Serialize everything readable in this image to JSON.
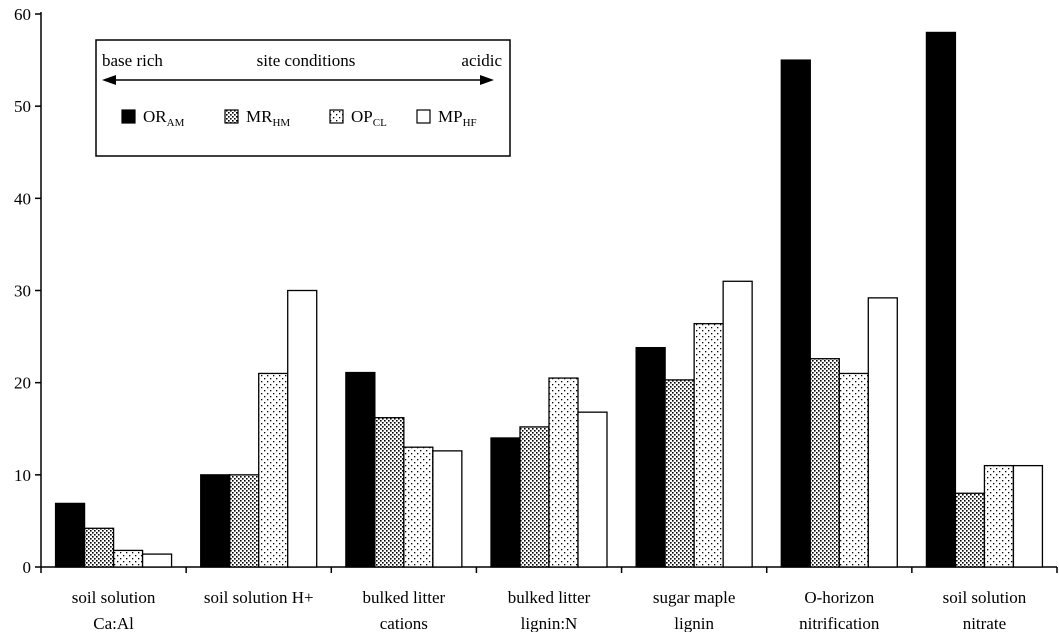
{
  "chart_data": {
    "type": "bar",
    "title": "",
    "xlabel": "",
    "ylabel": "",
    "ylim": [
      0,
      60
    ],
    "yticks": [
      "0",
      "10",
      "20",
      "30",
      "40",
      "50",
      "60"
    ],
    "categories": [
      [
        "soil solution",
        "Ca:Al"
      ],
      [
        "soil solution H+"
      ],
      [
        "bulked litter",
        "cations"
      ],
      [
        "bulked litter",
        "lignin:N"
      ],
      [
        "sugar maple",
        "lignin"
      ],
      [
        "O-horizon",
        "nitrification"
      ],
      [
        "soil solution",
        "nitrate"
      ]
    ],
    "series": [
      {
        "name": "OR",
        "sub": "AM",
        "fill": "solid",
        "color": "#000000",
        "values": [
          6.9,
          10.0,
          21.1,
          14.0,
          23.8,
          55.0,
          58.0
        ]
      },
      {
        "name": "MR",
        "sub": "HM",
        "fill": "dense-dots",
        "color": "#000000",
        "values": [
          4.2,
          10.0,
          16.2,
          15.2,
          20.3,
          22.6,
          8.0
        ]
      },
      {
        "name": "OP",
        "sub": "CL",
        "fill": "sparse-dots",
        "color": "#000000",
        "values": [
          1.8,
          21.0,
          13.0,
          20.5,
          26.4,
          21.0,
          11.0
        ]
      },
      {
        "name": "MP",
        "sub": "HF",
        "fill": "white",
        "color": "#ffffff",
        "values": [
          1.4,
          30.0,
          12.6,
          16.8,
          31.0,
          29.2,
          11.0
        ]
      }
    ],
    "legend": {
      "placement": "top-left",
      "left_label": "base rich",
      "center_label": "site conditions",
      "right_label": "acidic"
    },
    "grid": false
  }
}
